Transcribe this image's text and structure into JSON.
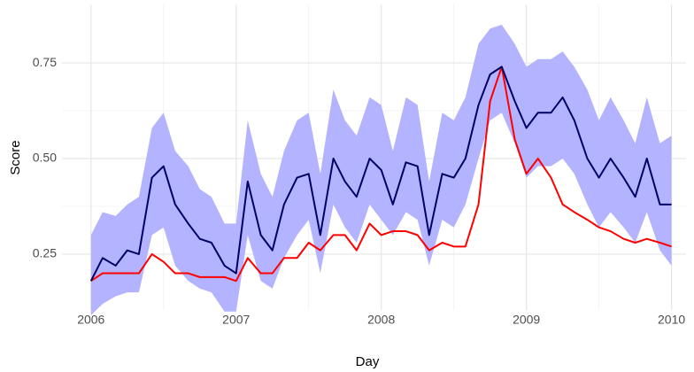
{
  "chart_data": {
    "type": "line",
    "x_label": "Day",
    "y_label": "Score",
    "x": [
      2006.0,
      2006.08,
      2006.17,
      2006.25,
      2006.33,
      2006.42,
      2006.5,
      2006.58,
      2006.67,
      2006.75,
      2006.83,
      2006.92,
      2007.0,
      2007.08,
      2007.17,
      2007.25,
      2007.33,
      2007.42,
      2007.5,
      2007.58,
      2007.67,
      2007.75,
      2007.83,
      2007.92,
      2008.0,
      2008.08,
      2008.17,
      2008.25,
      2008.33,
      2008.42,
      2008.5,
      2008.58,
      2008.67,
      2008.75,
      2008.83,
      2008.92,
      2009.0,
      2009.08,
      2009.17,
      2009.25,
      2009.33,
      2009.42,
      2009.5,
      2009.58,
      2009.67,
      2009.75,
      2009.83,
      2009.92,
      2010.0
    ],
    "band": {
      "color": "#b3b3ff",
      "lower": [
        0.09,
        0.12,
        0.14,
        0.15,
        0.15,
        0.3,
        0.32,
        0.22,
        0.18,
        0.16,
        0.15,
        0.1,
        0.1,
        0.3,
        0.18,
        0.16,
        0.24,
        0.3,
        0.34,
        0.2,
        0.38,
        0.32,
        0.28,
        0.38,
        0.34,
        0.3,
        0.36,
        0.34,
        0.22,
        0.34,
        0.32,
        0.38,
        0.5,
        0.6,
        0.62,
        0.54,
        0.45,
        0.48,
        0.48,
        0.5,
        0.46,
        0.38,
        0.32,
        0.36,
        0.32,
        0.28,
        0.36,
        0.26,
        0.22
      ],
      "upper": [
        0.3,
        0.36,
        0.35,
        0.38,
        0.4,
        0.58,
        0.62,
        0.52,
        0.48,
        0.42,
        0.4,
        0.33,
        0.33,
        0.6,
        0.46,
        0.4,
        0.52,
        0.6,
        0.62,
        0.46,
        0.68,
        0.6,
        0.56,
        0.66,
        0.64,
        0.52,
        0.66,
        0.64,
        0.44,
        0.62,
        0.6,
        0.66,
        0.8,
        0.84,
        0.85,
        0.8,
        0.74,
        0.76,
        0.76,
        0.78,
        0.74,
        0.68,
        0.6,
        0.66,
        0.6,
        0.54,
        0.66,
        0.54,
        0.56
      ]
    },
    "series": [
      {
        "color": "#ff0000",
        "values": [
          0.18,
          0.2,
          0.2,
          0.2,
          0.2,
          0.25,
          0.23,
          0.2,
          0.2,
          0.19,
          0.19,
          0.19,
          0.18,
          0.24,
          0.2,
          0.2,
          0.24,
          0.24,
          0.28,
          0.26,
          0.3,
          0.3,
          0.26,
          0.33,
          0.3,
          0.31,
          0.31,
          0.3,
          0.26,
          0.28,
          0.27,
          0.27,
          0.38,
          0.65,
          0.74,
          0.55,
          0.46,
          0.5,
          0.45,
          0.38,
          0.36,
          0.34,
          0.32,
          0.31,
          0.29,
          0.28,
          0.29,
          0.28,
          0.27
        ]
      },
      {
        "color": "#000066",
        "values": [
          0.18,
          0.24,
          0.22,
          0.26,
          0.25,
          0.45,
          0.48,
          0.38,
          0.33,
          0.29,
          0.28,
          0.22,
          0.2,
          0.44,
          0.3,
          0.26,
          0.38,
          0.45,
          0.46,
          0.3,
          0.5,
          0.44,
          0.4,
          0.5,
          0.47,
          0.38,
          0.49,
          0.48,
          0.3,
          0.46,
          0.45,
          0.5,
          0.64,
          0.72,
          0.74,
          0.65,
          0.58,
          0.62,
          0.62,
          0.66,
          0.6,
          0.5,
          0.45,
          0.5,
          0.45,
          0.4,
          0.5,
          0.38,
          0.38
        ]
      }
    ],
    "xlim": [
      2005.8,
      2010.1
    ],
    "xticks": [
      2006,
      2007,
      2008,
      2009,
      2010
    ],
    "ylim": [
      0.104,
      0.903
    ],
    "yticks": [
      0.25,
      {
        "value": 0.5,
        "label": "0.50"
      },
      0.75
    ],
    "grid": true
  }
}
